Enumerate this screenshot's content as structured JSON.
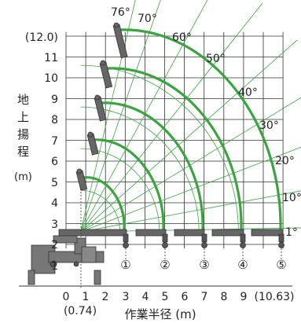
{
  "y_axis": {
    "label_chars": [
      "地",
      "上",
      "揚",
      "程"
    ],
    "unit": "(m)",
    "ticks": [
      "1",
      "2",
      "3",
      "4",
      "5",
      "6",
      "7",
      "8",
      "9",
      "10",
      "11",
      "(12.0)"
    ]
  },
  "x_axis": {
    "label": "作業半径",
    "unit": "(m)",
    "ticks": [
      "0",
      "1",
      "2",
      "3",
      "4",
      "5",
      "6",
      "7",
      "8",
      "9",
      "(10.63)"
    ],
    "sub_label": "(0.74)"
  },
  "angles": [
    "76°",
    "70°",
    "60°",
    "50°",
    "40°",
    "30°",
    "20°",
    "10°",
    "1°"
  ],
  "boom_stages": [
    "①",
    "②",
    "③",
    "④",
    "⑤"
  ],
  "colors": {
    "curve": "#3aa540",
    "grid": "#333333",
    "crane": "#666666"
  }
}
